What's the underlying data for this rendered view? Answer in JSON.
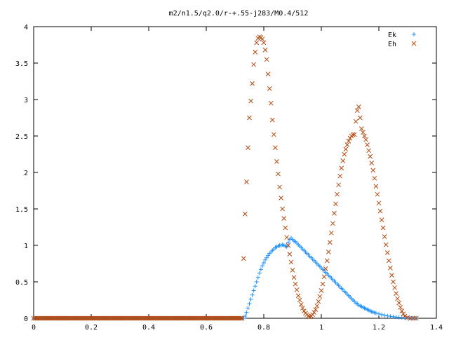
{
  "chart_data": {
    "type": "scatter",
    "title": "m2/n1.5/q2.0/r-+.55-j283/M0.4/512",
    "xlabel": "",
    "ylabel": "",
    "xlim": [
      0,
      1.4
    ],
    "ylim": [
      0,
      4
    ],
    "grid": false,
    "legend_position": "top-right",
    "x_ticks": [
      "0",
      "0.2",
      "0.4",
      "0.6",
      "0.8",
      "1",
      "1.2",
      "1.4"
    ],
    "y_ticks": [
      "0",
      "0.5",
      "1",
      "1.5",
      "2",
      "2.5",
      "3",
      "3.5",
      "4"
    ],
    "series": [
      {
        "name": "Ek",
        "marker": "plus",
        "color": "#1e90ff",
        "points": [
          [
            0.73,
            0.0
          ],
          [
            0.735,
            0.03
          ],
          [
            0.74,
            0.08
          ],
          [
            0.745,
            0.14
          ],
          [
            0.75,
            0.2
          ],
          [
            0.755,
            0.26
          ],
          [
            0.76,
            0.32
          ],
          [
            0.765,
            0.38
          ],
          [
            0.77,
            0.44
          ],
          [
            0.775,
            0.5
          ],
          [
            0.78,
            0.56
          ],
          [
            0.785,
            0.62
          ],
          [
            0.79,
            0.67
          ],
          [
            0.795,
            0.72
          ],
          [
            0.8,
            0.76
          ],
          [
            0.805,
            0.8
          ],
          [
            0.81,
            0.83
          ],
          [
            0.815,
            0.86
          ],
          [
            0.82,
            0.89
          ],
          [
            0.825,
            0.91
          ],
          [
            0.83,
            0.93
          ],
          [
            0.835,
            0.95
          ],
          [
            0.84,
            0.97
          ],
          [
            0.845,
            0.98
          ],
          [
            0.85,
            0.99
          ],
          [
            0.855,
            1.0
          ],
          [
            0.86,
            1.0
          ],
          [
            0.865,
            1.01
          ],
          [
            0.87,
            1.0
          ],
          [
            0.875,
            0.99
          ],
          [
            0.88,
            0.98
          ],
          [
            0.885,
            1.04
          ],
          [
            0.89,
            1.08
          ],
          [
            0.895,
            1.1
          ],
          [
            0.9,
            1.08
          ],
          [
            0.905,
            1.06
          ],
          [
            0.91,
            1.05
          ],
          [
            0.915,
            1.03
          ],
          [
            0.92,
            1.01
          ],
          [
            0.925,
            0.99
          ],
          [
            0.93,
            0.97
          ],
          [
            0.935,
            0.95
          ],
          [
            0.94,
            0.93
          ],
          [
            0.945,
            0.91
          ],
          [
            0.95,
            0.89
          ],
          [
            0.955,
            0.87
          ],
          [
            0.96,
            0.85
          ],
          [
            0.965,
            0.83
          ],
          [
            0.97,
            0.81
          ],
          [
            0.975,
            0.79
          ],
          [
            0.98,
            0.77
          ],
          [
            0.985,
            0.75
          ],
          [
            0.99,
            0.73
          ],
          [
            0.995,
            0.71
          ],
          [
            1.0,
            0.69
          ],
          [
            1.005,
            0.67
          ],
          [
            1.01,
            0.65
          ],
          [
            1.015,
            0.63
          ],
          [
            1.02,
            0.61
          ],
          [
            1.025,
            0.59
          ],
          [
            1.03,
            0.57
          ],
          [
            1.035,
            0.55
          ],
          [
            1.04,
            0.53
          ],
          [
            1.045,
            0.51
          ],
          [
            1.05,
            0.49
          ],
          [
            1.055,
            0.47
          ],
          [
            1.06,
            0.45
          ],
          [
            1.065,
            0.43
          ],
          [
            1.07,
            0.41
          ],
          [
            1.075,
            0.39
          ],
          [
            1.08,
            0.37
          ],
          [
            1.085,
            0.35
          ],
          [
            1.09,
            0.33
          ],
          [
            1.095,
            0.31
          ],
          [
            1.1,
            0.29
          ],
          [
            1.105,
            0.27
          ],
          [
            1.11,
            0.25
          ],
          [
            1.115,
            0.23
          ],
          [
            1.12,
            0.21
          ],
          [
            1.125,
            0.2
          ],
          [
            1.13,
            0.18
          ],
          [
            1.135,
            0.17
          ],
          [
            1.14,
            0.16
          ],
          [
            1.145,
            0.15
          ],
          [
            1.15,
            0.14
          ],
          [
            1.155,
            0.13
          ],
          [
            1.16,
            0.12
          ],
          [
            1.165,
            0.11
          ],
          [
            1.17,
            0.1
          ],
          [
            1.175,
            0.09
          ],
          [
            1.18,
            0.085
          ],
          [
            1.185,
            0.078
          ],
          [
            1.19,
            0.07
          ],
          [
            1.2,
            0.06
          ],
          [
            1.21,
            0.05
          ],
          [
            1.22,
            0.04
          ],
          [
            1.23,
            0.033
          ],
          [
            1.24,
            0.027
          ],
          [
            1.25,
            0.021
          ],
          [
            1.26,
            0.016
          ],
          [
            1.27,
            0.012
          ],
          [
            1.28,
            0.008
          ],
          [
            1.29,
            0.005
          ],
          [
            1.3,
            0.003
          ],
          [
            1.31,
            0.002
          ],
          [
            1.32,
            0.001
          ],
          [
            1.33,
            0.0
          ]
        ]
      },
      {
        "name": "Eh",
        "marker": "cross",
        "color": "#b5490f",
        "points": [
          [
            0.73,
            0.82
          ],
          [
            0.735,
            1.43
          ],
          [
            0.74,
            1.87
          ],
          [
            0.745,
            2.34
          ],
          [
            0.75,
            2.75
          ],
          [
            0.755,
            2.98
          ],
          [
            0.76,
            3.22
          ],
          [
            0.765,
            3.48
          ],
          [
            0.77,
            3.65
          ],
          [
            0.775,
            3.78
          ],
          [
            0.78,
            3.84
          ],
          [
            0.785,
            3.86
          ],
          [
            0.79,
            3.85
          ],
          [
            0.795,
            3.83
          ],
          [
            0.8,
            3.78
          ],
          [
            0.805,
            3.68
          ],
          [
            0.81,
            3.55
          ],
          [
            0.815,
            3.35
          ],
          [
            0.82,
            3.15
          ],
          [
            0.825,
            2.95
          ],
          [
            0.83,
            2.72
          ],
          [
            0.835,
            2.52
          ],
          [
            0.84,
            2.34
          ],
          [
            0.845,
            2.15
          ],
          [
            0.85,
            1.98
          ],
          [
            0.855,
            1.8
          ],
          [
            0.86,
            1.65
          ],
          [
            0.865,
            1.5
          ],
          [
            0.87,
            1.37
          ],
          [
            0.875,
            1.24
          ],
          [
            0.88,
            1.11
          ],
          [
            0.885,
            1.0
          ],
          [
            0.89,
            0.88
          ],
          [
            0.895,
            0.77
          ],
          [
            0.9,
            0.66
          ],
          [
            0.905,
            0.56
          ],
          [
            0.91,
            0.47
          ],
          [
            0.915,
            0.39
          ],
          [
            0.92,
            0.31
          ],
          [
            0.925,
            0.25
          ],
          [
            0.93,
            0.19
          ],
          [
            0.935,
            0.14
          ],
          [
            0.94,
            0.1
          ],
          [
            0.945,
            0.07
          ],
          [
            0.95,
            0.05
          ],
          [
            0.955,
            0.03
          ],
          [
            0.96,
            0.02
          ],
          [
            0.965,
            0.03
          ],
          [
            0.97,
            0.05
          ],
          [
            0.975,
            0.08
          ],
          [
            0.98,
            0.12
          ],
          [
            0.985,
            0.17
          ],
          [
            0.99,
            0.23
          ],
          [
            0.995,
            0.3
          ],
          [
            1.0,
            0.38
          ],
          [
            1.005,
            0.47
          ],
          [
            1.01,
            0.57
          ],
          [
            1.015,
            0.68
          ],
          [
            1.02,
            0.79
          ],
          [
            1.025,
            0.91
          ],
          [
            1.03,
            1.04
          ],
          [
            1.035,
            1.17
          ],
          [
            1.04,
            1.3
          ],
          [
            1.045,
            1.44
          ],
          [
            1.05,
            1.57
          ],
          [
            1.055,
            1.7
          ],
          [
            1.06,
            1.83
          ],
          [
            1.065,
            1.95
          ],
          [
            1.07,
            2.06
          ],
          [
            1.075,
            2.16
          ],
          [
            1.08,
            2.25
          ],
          [
            1.085,
            2.32
          ],
          [
            1.09,
            2.38
          ],
          [
            1.095,
            2.43
          ],
          [
            1.1,
            2.47
          ],
          [
            1.105,
            2.5
          ],
          [
            1.11,
            2.52
          ],
          [
            1.115,
            2.52
          ],
          [
            1.12,
            2.7
          ],
          [
            1.125,
            2.85
          ],
          [
            1.13,
            2.9
          ],
          [
            1.135,
            2.75
          ],
          [
            1.14,
            2.6
          ],
          [
            1.145,
            2.55
          ],
          [
            1.15,
            2.5
          ],
          [
            1.155,
            2.45
          ],
          [
            1.16,
            2.38
          ],
          [
            1.165,
            2.3
          ],
          [
            1.17,
            2.22
          ],
          [
            1.175,
            2.13
          ],
          [
            1.18,
            2.03
          ],
          [
            1.185,
            1.92
          ],
          [
            1.19,
            1.81
          ],
          [
            1.195,
            1.7
          ],
          [
            1.2,
            1.58
          ],
          [
            1.205,
            1.47
          ],
          [
            1.21,
            1.35
          ],
          [
            1.215,
            1.24
          ],
          [
            1.22,
            1.12
          ],
          [
            1.225,
            1.01
          ],
          [
            1.23,
            0.9
          ],
          [
            1.235,
            0.79
          ],
          [
            1.24,
            0.69
          ],
          [
            1.245,
            0.59
          ],
          [
            1.25,
            0.5
          ],
          [
            1.255,
            0.42
          ],
          [
            1.26,
            0.34
          ],
          [
            1.265,
            0.27
          ],
          [
            1.27,
            0.21
          ],
          [
            1.275,
            0.15
          ],
          [
            1.28,
            0.1
          ],
          [
            1.285,
            0.06
          ],
          [
            1.29,
            0.03
          ],
          [
            1.3,
            0.01
          ],
          [
            1.31,
            0.0
          ],
          [
            1.32,
            0.0
          ],
          [
            1.33,
            0.0
          ]
        ]
      }
    ]
  }
}
